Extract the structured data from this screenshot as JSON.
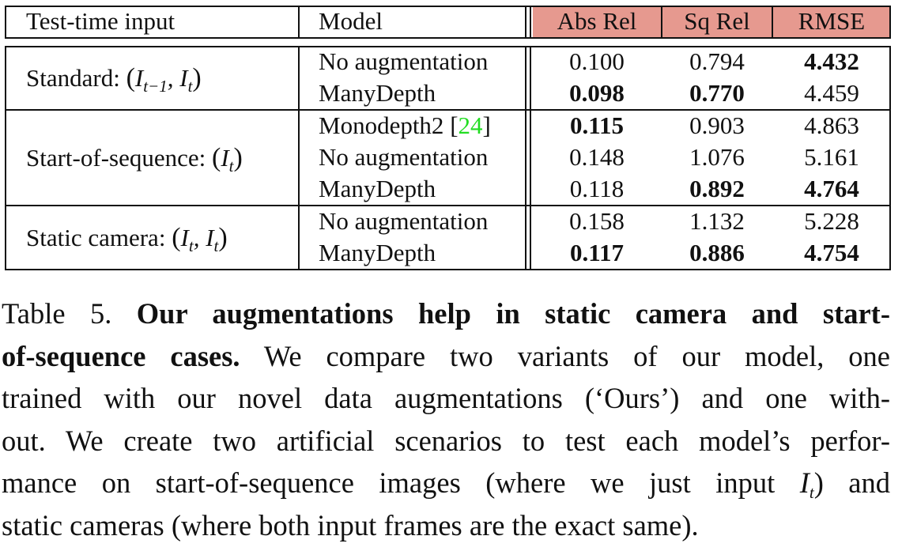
{
  "table": {
    "headers": {
      "input": "Test-time input",
      "model": "Model",
      "abs_rel": "Abs Rel",
      "sq_rel": "Sq Rel",
      "rmse": "RMSE"
    },
    "header_metric_color": "#e6998f",
    "reference_color": "#22dd22",
    "groups": [
      {
        "input_label": "Standard:",
        "input_math": "(I_{t-1}, I_t)",
        "rows": [
          {
            "model": "No augmentation",
            "abs_rel": "0.100",
            "sq_rel": "0.794",
            "rmse": "4.432",
            "bold": [
              "rmse"
            ]
          },
          {
            "model": "ManyDepth",
            "abs_rel": "0.098",
            "sq_rel": "0.770",
            "rmse": "4.459",
            "bold": [
              "abs_rel",
              "sq_rel"
            ]
          }
        ]
      },
      {
        "input_label": "Start-of-sequence:",
        "input_math": "(I_t)",
        "rows": [
          {
            "model": "Monodepth2",
            "ref": "24",
            "abs_rel": "0.115",
            "sq_rel": "0.903",
            "rmse": "4.863",
            "bold": [
              "abs_rel"
            ]
          },
          {
            "model": "No augmentation",
            "abs_rel": "0.148",
            "sq_rel": "1.076",
            "rmse": "5.161",
            "bold": []
          },
          {
            "model": "ManyDepth",
            "abs_rel": "0.118",
            "sq_rel": "0.892",
            "rmse": "4.764",
            "bold": [
              "sq_rel",
              "rmse"
            ]
          }
        ]
      },
      {
        "input_label": "Static camera:",
        "input_math": "(I_t, I_t)",
        "rows": [
          {
            "model": "No augmentation",
            "abs_rel": "0.158",
            "sq_rel": "1.132",
            "rmse": "5.228",
            "bold": []
          },
          {
            "model": "ManyDepth",
            "abs_rel": "0.117",
            "sq_rel": "0.886",
            "rmse": "4.754",
            "bold": [
              "abs_rel",
              "sq_rel",
              "rmse"
            ]
          }
        ]
      }
    ]
  },
  "caption": {
    "label": "Table 5.",
    "bold_part_1": "Our augmentations help in static camera and start-",
    "bold_part_2": "of-sequence cases.",
    "line_2_rest": "We compare two variants of our model, one",
    "line_3": "trained with our novel data augmentations (‘Ours’) and one with-",
    "line_4": "out. We create two artificial scenarios to test each model’s perfor-",
    "line_5_a": "mance on start-of-sequence images (where we just input",
    "line_5_math": "I_t",
    "line_5_b": ") and",
    "line_6": "static cameras (where both input frames are the exact same)."
  }
}
